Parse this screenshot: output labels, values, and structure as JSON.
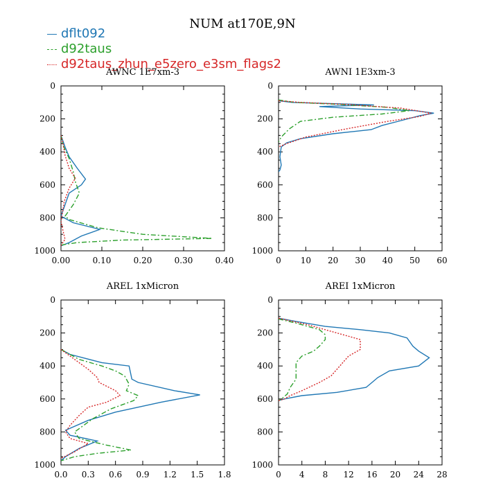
{
  "figure": {
    "title": "NUM at170E,9N",
    "legend": [
      {
        "label": "dflt092",
        "color": "#1f77b4",
        "dash": "solid"
      },
      {
        "label": "d92taus",
        "color": "#2ca02c",
        "dash": "dashdot"
      },
      {
        "label": "d92taus_zhun_e5zero_e3sm_flags2",
        "color": "#d62728",
        "dash": "dot"
      }
    ]
  },
  "chart_data": [
    {
      "type": "line",
      "title": "AWNC 1E7xm-3",
      "xlim": [
        0,
        0.4
      ],
      "xticks": [
        0,
        0.1,
        0.2,
        0.3,
        0.4
      ],
      "xtick_labels": [
        "0.00",
        "0.10",
        "0.20",
        "0.30",
        "0.40"
      ],
      "ylim": [
        1000,
        0
      ],
      "yticks": [
        0,
        200,
        400,
        600,
        800,
        1000
      ],
      "series": [
        {
          "name": "dflt092",
          "points": [
            [
              0,
              300
            ],
            [
              0.01,
              370
            ],
            [
              0.02,
              430
            ],
            [
              0.04,
              500
            ],
            [
              0.06,
              565
            ],
            [
              0.05,
              600
            ],
            [
              0.02,
              650
            ],
            [
              0.01,
              720
            ],
            [
              0.0,
              790
            ],
            [
              0.03,
              830
            ],
            [
              0.095,
              870
            ],
            [
              0.05,
              910
            ],
            [
              0.02,
              950
            ],
            [
              0,
              970
            ]
          ]
        },
        {
          "name": "d92taus",
          "points": [
            [
              0,
              300
            ],
            [
              0.005,
              360
            ],
            [
              0.02,
              440
            ],
            [
              0.03,
              520
            ],
            [
              0.035,
              580
            ],
            [
              0.045,
              650
            ],
            [
              0.03,
              720
            ],
            [
              0.01,
              790
            ],
            [
              0.02,
              810
            ],
            [
              0.09,
              860
            ],
            [
              0.2,
              900
            ],
            [
              0.37,
              925
            ],
            [
              0.15,
              935
            ],
            [
              0.04,
              950
            ],
            [
              0,
              965
            ]
          ]
        },
        {
          "name": "d92taus_zhun_e5zero_e3sm_flags2",
          "points": [
            [
              0,
              300
            ],
            [
              0.005,
              350
            ],
            [
              0.01,
              420
            ],
            [
              0.02,
              500
            ],
            [
              0.035,
              560
            ],
            [
              0.02,
              620
            ],
            [
              0.008,
              700
            ],
            [
              0.003,
              780
            ],
            [
              0.0,
              820
            ],
            [
              0.005,
              880
            ],
            [
              0.01,
              930
            ],
            [
              0.002,
              960
            ],
            [
              0,
              970
            ]
          ]
        }
      ]
    },
    {
      "type": "line",
      "title": "AWNI 1E3xm-3",
      "xlim": [
        0,
        60
      ],
      "xticks": [
        0,
        10,
        20,
        30,
        40,
        50,
        60
      ],
      "xtick_labels": [
        "0",
        "10",
        "20",
        "30",
        "40",
        "50",
        "60"
      ],
      "ylim": [
        1000,
        0
      ],
      "yticks": [
        0,
        200,
        400,
        600,
        800,
        1000
      ],
      "series": [
        {
          "name": "dflt092",
          "points": [
            [
              0,
              90
            ],
            [
              5,
              100
            ],
            [
              35,
              115
            ],
            [
              15,
              125
            ],
            [
              30,
              140
            ],
            [
              50,
              150
            ],
            [
              57,
              165
            ],
            [
              52,
              180
            ],
            [
              45,
              210
            ],
            [
              38,
              240
            ],
            [
              34,
              265
            ],
            [
              20,
              290
            ],
            [
              8,
              320
            ],
            [
              3,
              345
            ],
            [
              1,
              370
            ],
            [
              0.5,
              430
            ],
            [
              1,
              480
            ],
            [
              0.5,
              510
            ],
            [
              0,
              520
            ]
          ]
        },
        {
          "name": "d92taus",
          "points": [
            [
              0,
              85
            ],
            [
              6,
              100
            ],
            [
              20,
              110
            ],
            [
              40,
              130
            ],
            [
              48,
              150
            ],
            [
              38,
              170
            ],
            [
              20,
              190
            ],
            [
              8,
              215
            ],
            [
              4,
              260
            ],
            [
              1,
              310
            ],
            [
              0,
              340
            ]
          ]
        },
        {
          "name": "d92taus_zhun_e5zero_e3sm_flags2",
          "points": [
            [
              0,
              90
            ],
            [
              8,
              100
            ],
            [
              25,
              112
            ],
            [
              45,
              135
            ],
            [
              56,
              165
            ],
            [
              52,
              185
            ],
            [
              40,
              215
            ],
            [
              25,
              260
            ],
            [
              10,
              310
            ],
            [
              3,
              350
            ],
            [
              0,
              370
            ]
          ]
        }
      ]
    },
    {
      "type": "line",
      "title": "AREL 1xMicron",
      "xlim": [
        0,
        1.8
      ],
      "xticks": [
        0,
        0.3,
        0.6,
        0.9,
        1.2,
        1.5,
        1.8
      ],
      "xtick_labels": [
        "0.0",
        "0.3",
        "0.6",
        "0.9",
        "1.2",
        "1.5",
        "1.8"
      ],
      "ylim": [
        1000,
        0
      ],
      "yticks": [
        0,
        200,
        400,
        600,
        800,
        1000
      ],
      "series": [
        {
          "name": "dflt092",
          "points": [
            [
              0,
              300
            ],
            [
              0.1,
              330
            ],
            [
              0.45,
              380
            ],
            [
              0.75,
              400
            ],
            [
              0.78,
              480
            ],
            [
              0.85,
              500
            ],
            [
              1.25,
              550
            ],
            [
              1.53,
              575
            ],
            [
              1.1,
              620
            ],
            [
              0.6,
              680
            ],
            [
              0.3,
              730
            ],
            [
              0.05,
              790
            ],
            [
              0.1,
              820
            ],
            [
              0.4,
              855
            ],
            [
              0.2,
              900
            ],
            [
              0.05,
              950
            ],
            [
              0,
              975
            ]
          ]
        },
        {
          "name": "d92taus",
          "points": [
            [
              0,
              300
            ],
            [
              0.2,
              360
            ],
            [
              0.45,
              400
            ],
            [
              0.6,
              430
            ],
            [
              0.7,
              460
            ],
            [
              0.75,
              510
            ],
            [
              0.72,
              550
            ],
            [
              0.85,
              580
            ],
            [
              0.8,
              610
            ],
            [
              0.55,
              660
            ],
            [
              0.35,
              720
            ],
            [
              0.15,
              800
            ],
            [
              0.2,
              840
            ],
            [
              0.5,
              880
            ],
            [
              0.77,
              910
            ],
            [
              0.4,
              930
            ],
            [
              0.15,
              950
            ],
            [
              0,
              975
            ]
          ]
        },
        {
          "name": "d92taus_zhun_e5zero_e3sm_flags2",
          "points": [
            [
              0,
              300
            ],
            [
              0.15,
              360
            ],
            [
              0.3,
              420
            ],
            [
              0.4,
              470
            ],
            [
              0.42,
              500
            ],
            [
              0.6,
              550
            ],
            [
              0.65,
              580
            ],
            [
              0.5,
              620
            ],
            [
              0.3,
              650
            ],
            [
              0.2,
              700
            ],
            [
              0.1,
              760
            ],
            [
              0.05,
              800
            ],
            [
              0.1,
              840
            ],
            [
              0.3,
              870
            ],
            [
              0.15,
              920
            ],
            [
              0,
              960
            ]
          ]
        }
      ]
    },
    {
      "type": "line",
      "title": "AREI 1xMicron",
      "xlim": [
        0,
        28
      ],
      "xticks": [
        0,
        4,
        8,
        12,
        16,
        20,
        24,
        28
      ],
      "xtick_labels": [
        "0",
        "4",
        "8",
        "12",
        "16",
        "20",
        "24",
        "28"
      ],
      "ylim": [
        1000,
        0
      ],
      "yticks": [
        0,
        200,
        400,
        600,
        800,
        1000
      ],
      "series": [
        {
          "name": "dflt092",
          "points": [
            [
              0,
              110
            ],
            [
              3,
              130
            ],
            [
              8,
              160
            ],
            [
              14,
              180
            ],
            [
              19,
              200
            ],
            [
              22,
              230
            ],
            [
              23,
              280
            ],
            [
              24,
              310
            ],
            [
              25.8,
              350
            ],
            [
              24,
              400
            ],
            [
              19,
              430
            ],
            [
              17,
              470
            ],
            [
              16,
              500
            ],
            [
              15,
              530
            ],
            [
              10,
              560
            ],
            [
              4,
              580
            ],
            [
              1,
              600
            ],
            [
              0,
              610
            ]
          ]
        },
        {
          "name": "d92taus",
          "points": [
            [
              0,
              115
            ],
            [
              3,
              140
            ],
            [
              7,
              180
            ],
            [
              8,
              210
            ],
            [
              8,
              240
            ],
            [
              7,
              280
            ],
            [
              6,
              310
            ],
            [
              4,
              340
            ],
            [
              3,
              380
            ],
            [
              3,
              430
            ],
            [
              3,
              480
            ],
            [
              2,
              530
            ],
            [
              1.5,
              570
            ],
            [
              0.5,
              600
            ],
            [
              0,
              610
            ]
          ]
        },
        {
          "name": "d92taus_zhun_e5zero_e3sm_flags2",
          "points": [
            [
              0,
              110
            ],
            [
              5,
              150
            ],
            [
              10,
              200
            ],
            [
              14,
              240
            ],
            [
              14,
              300
            ],
            [
              12,
              340
            ],
            [
              11,
              380
            ],
            [
              10,
              420
            ],
            [
              9,
              460
            ],
            [
              7,
              500
            ],
            [
              4,
              550
            ],
            [
              2,
              580
            ],
            [
              1,
              600
            ],
            [
              0,
              610
            ]
          ]
        }
      ]
    }
  ]
}
